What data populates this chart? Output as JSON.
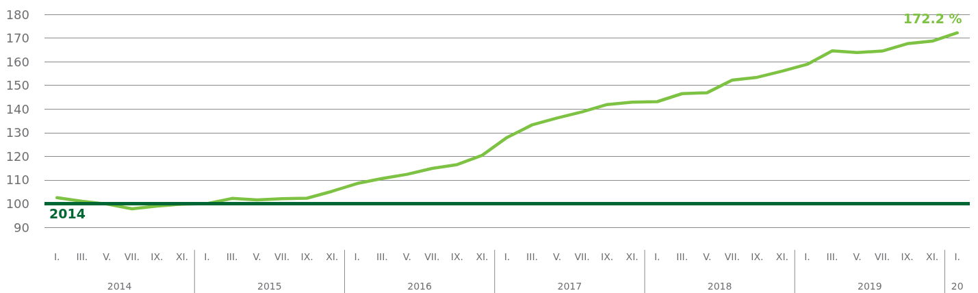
{
  "chart_data": {
    "type": "line",
    "categories": [
      "I.",
      "III.",
      "V.",
      "VII.",
      "IX.",
      "XI.",
      "I.",
      "III.",
      "V.",
      "VII.",
      "IX.",
      "XI.",
      "I.",
      "III.",
      "V.",
      "VII.",
      "IX.",
      "XI.",
      "I.",
      "III.",
      "V.",
      "VII.",
      "IX.",
      "XI.",
      "I.",
      "III.",
      "V.",
      "VII.",
      "IX.",
      "XI.",
      "I.",
      "III.",
      "V.",
      "VII.",
      "IX.",
      "XI.",
      "I."
    ],
    "series": [
      {
        "color": "#7dc242",
        "values": [
          102.5,
          101,
          99.8,
          97.8,
          99,
          99.8,
          100,
          102.2,
          101.6,
          102.1,
          102.3,
          105.2,
          108.5,
          110.6,
          112.4,
          114.9,
          116.5,
          120.4,
          128,
          133.3,
          136.2,
          138.8,
          141.9,
          142.9,
          143.1,
          146.5,
          146.9,
          152.2,
          153.4,
          156,
          158.9,
          164.6,
          163.9,
          164.5,
          167.6,
          168.7,
          172.2
        ],
        "value_labels": [
          null,
          null,
          null,
          null,
          null,
          null,
          null,
          null,
          null,
          null,
          null,
          null,
          null,
          null,
          null,
          null,
          null,
          null,
          null,
          null,
          null,
          null,
          null,
          null,
          null,
          null,
          null,
          null,
          null,
          null,
          null,
          null,
          null,
          null,
          null,
          null,
          "172.2 %"
        ]
      }
    ],
    "ylim": [
      90,
      180
    ],
    "yticks": [
      90,
      100,
      110,
      120,
      130,
      140,
      150,
      160,
      170,
      180
    ],
    "grid": "y",
    "marker": "none",
    "line_style": "solid",
    "ref_lines": [
      {
        "axis": "y",
        "value": 100,
        "color": "#006633"
      }
    ],
    "annotations": [
      {
        "text": "2014",
        "y": 100
      },
      "2014",
      "2015",
      "2016",
      "2017",
      "2018",
      "2019",
      "20"
    ]
  }
}
